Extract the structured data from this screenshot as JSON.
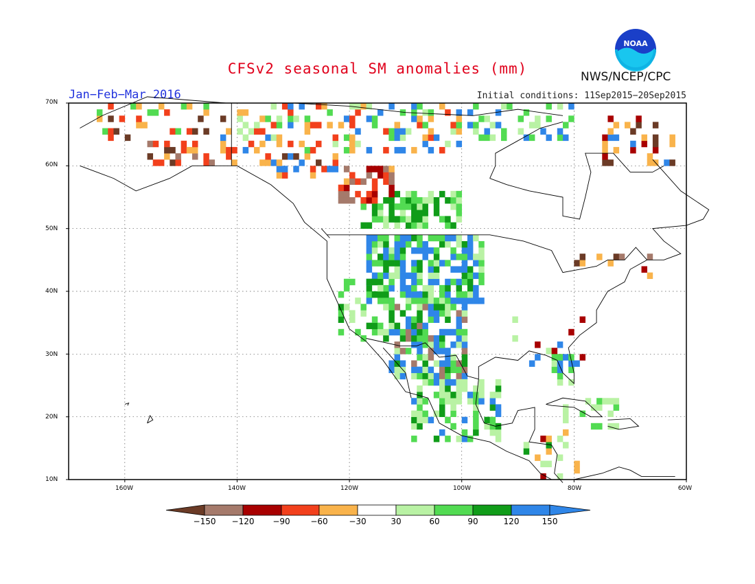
{
  "title": "CFSv2 seasonal SM anomalies (mm)",
  "period": "Jan−Feb−Mar 2016",
  "initial_conditions": "Initial conditions: 11Sep2015−20Sep2015",
  "agency": "NWS/NCEP/CPC",
  "logo_text": "NOAA",
  "lat_labels": [
    "70N",
    "60N",
    "50N",
    "40N",
    "30N",
    "20N",
    "10N"
  ],
  "lon_labels": [
    "160W",
    "140W",
    "120W",
    "100W",
    "80W",
    "60W"
  ],
  "legend": {
    "labels": [
      "−150",
      "−120",
      "−90",
      "−60",
      "−30",
      "30",
      "60",
      "90",
      "120",
      "150"
    ],
    "colors": [
      "#6b3b26",
      "#a57a6b",
      "#a80000",
      "#f2401c",
      "#f9b34b",
      "#ffffff",
      "#b9f2a4",
      "#52db52",
      "#109c19",
      "#2f86e8",
      "#2f86e8"
    ]
  }
}
